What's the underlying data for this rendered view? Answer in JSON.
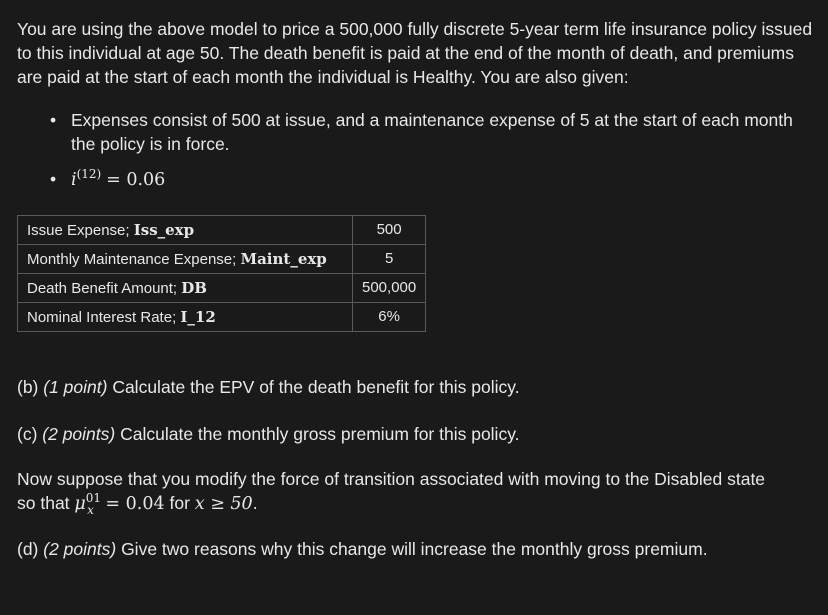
{
  "intro": "You are using the above model to price a 500,000 fully discrete 5-year term life insurance policy issued to this individual at age 50. The death benefit is paid at the end of the month of death, and premiums are paid at the start of each month the individual is Healthy. You are also given:",
  "bullets": {
    "expenses": "Expenses consist of 500 at issue, and a maintenance expense of 5 at the start of each month the policy is in force.",
    "interest": {
      "symbol": "i",
      "superscript": "(12)",
      "equals": "= 0.06"
    }
  },
  "table": {
    "rows": [
      {
        "label": "Issue Expense; ",
        "symbol": "Iss_exp",
        "value": "500"
      },
      {
        "label": "Monthly Maintenance Expense; ",
        "symbol": "Maint_exp",
        "value": "5"
      },
      {
        "label": "Death Benefit Amount; ",
        "symbol": "DB",
        "value": "500,000"
      },
      {
        "label": "Nominal Interest Rate; ",
        "symbol": "I_12",
        "value": "6%"
      }
    ]
  },
  "questions": {
    "b": {
      "prefix": "(b) ",
      "points": "(1 point)",
      "text": " Calculate the EPV of the death benefit for this policy."
    },
    "c": {
      "prefix": "(c) ",
      "points": "(2 points)",
      "text": " Calculate the monthly gross premium for this policy."
    },
    "modification": {
      "line1": "Now suppose that you modify the force of transition associated with moving to the Disabled state",
      "line2_prefix": "so that ",
      "mu": "μ",
      "mu_sup": "01",
      "mu_sub": "x",
      "mu_eq": " = 0.04",
      "for_text": " for ",
      "cond": "x ≥ 50",
      "end": "."
    },
    "d": {
      "prefix": "(d) ",
      "points": "(2 points)",
      "text": " Give two reasons why this change will increase the monthly gross premium."
    }
  }
}
